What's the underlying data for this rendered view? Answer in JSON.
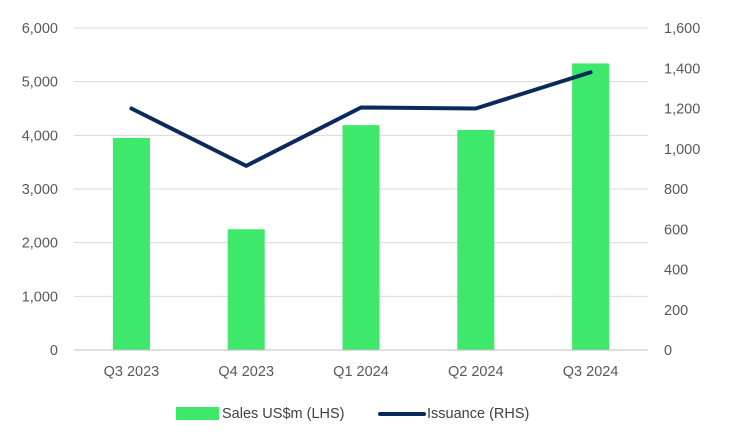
{
  "chart_data": {
    "type": "bar+line",
    "categories": [
      "Q3 2023",
      "Q4 2023",
      "Q1 2024",
      "Q2 2024",
      "Q3 2024"
    ],
    "series": [
      {
        "name": "Sales US$m (LHS)",
        "type": "bar",
        "axis": "left",
        "color": "#3ee86a",
        "values": [
          3950,
          2250,
          4190,
          4100,
          5340
        ]
      },
      {
        "name": "Issuance (RHS)",
        "type": "line",
        "axis": "right",
        "color": "#0b2a5b",
        "values": [
          1200,
          915,
          1205,
          1200,
          1380
        ]
      }
    ],
    "y_left": {
      "range": [
        0,
        6000
      ],
      "ticks": [
        0,
        1000,
        2000,
        3000,
        4000,
        5000,
        6000
      ],
      "tick_labels": [
        "0",
        "1,000",
        "2,000",
        "3,000",
        "4,000",
        "5,000",
        "6,000"
      ]
    },
    "y_right": {
      "range": [
        0,
        1600
      ],
      "ticks": [
        0,
        200,
        400,
        600,
        800,
        1000,
        1200,
        1400,
        1600
      ],
      "tick_labels": [
        "0",
        "200",
        "400",
        "600",
        "800",
        "1,000",
        "1,200",
        "1,400",
        "1,600"
      ]
    },
    "gridlines": true,
    "gridline_color": "#d9d9d9",
    "legend_placement": "bottom-center"
  }
}
